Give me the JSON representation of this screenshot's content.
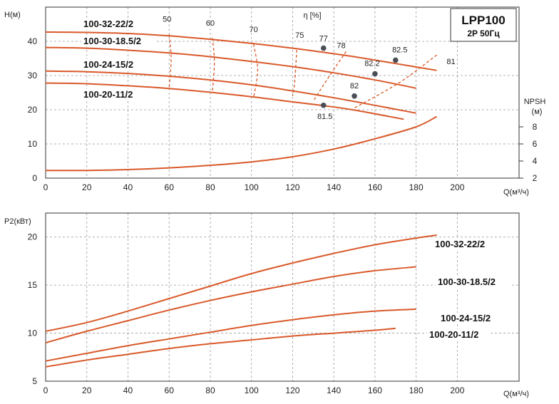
{
  "title": "LPP100",
  "subtitle": "2P  50Гц",
  "chart_data": [
    {
      "type": "line",
      "ylabel": "H(м)",
      "xlabel": "Q(м³/ч)",
      "y2label": "NPSH",
      "y2unit": "(м)",
      "xlim": [
        0,
        230
      ],
      "ylim": [
        0,
        50
      ],
      "y2lim": [
        2,
        10
      ],
      "xticks": [
        0,
        20,
        40,
        60,
        80,
        100,
        120,
        140,
        160,
        180,
        200
      ],
      "yticks": [
        0,
        10,
        20,
        30,
        40
      ],
      "y2ticks": [
        2,
        4,
        6,
        8
      ],
      "grid": true,
      "efficiency_label": "η [%]",
      "series": [
        {
          "name": "100-32-22/2",
          "x": [
            0,
            20,
            40,
            60,
            80,
            100,
            120,
            135,
            150,
            170,
            190
          ],
          "y": [
            42.7,
            42.6,
            42.3,
            41.6,
            40.6,
            39.4,
            38.0,
            36.8,
            35.5,
            33.5,
            31.5
          ]
        },
        {
          "name": "100-30-18.5/2",
          "x": [
            0,
            20,
            40,
            60,
            80,
            100,
            120,
            140,
            160,
            180
          ],
          "y": [
            38.2,
            38.0,
            37.4,
            36.6,
            35.5,
            34.1,
            32.6,
            30.8,
            28.7,
            26.3
          ]
        },
        {
          "name": "100-24-15/2",
          "x": [
            0,
            20,
            40,
            60,
            80,
            100,
            120,
            140,
            160,
            180
          ],
          "y": [
            31.3,
            31.1,
            30.6,
            29.8,
            28.7,
            27.3,
            25.5,
            23.5,
            21.3,
            19.0
          ]
        },
        {
          "name": "100-20-11/2",
          "x": [
            0,
            20,
            40,
            60,
            80,
            100,
            120,
            135,
            150,
            174
          ],
          "y": [
            27.8,
            27.6,
            27.0,
            26.2,
            25.1,
            23.8,
            22.3,
            21.2,
            19.9,
            17.2
          ]
        }
      ],
      "efficiency_points": [
        {
          "label": "77",
          "x": 135,
          "y": 38.0
        },
        {
          "label": "82.5",
          "x": 170,
          "y": 34.5
        },
        {
          "label": "82.2",
          "x": 160,
          "y": 30.5
        },
        {
          "label": "82",
          "x": 150,
          "y": 24.0
        },
        {
          "label": "81.5",
          "x": 135,
          "y": 21.3
        }
      ],
      "efficiency_curves": [
        {
          "label": "50",
          "x": [
            60,
            61,
            60
          ],
          "y": [
            42.0,
            35.0,
            26.2
          ]
        },
        {
          "label": "60",
          "x": [
            81,
            82,
            81
          ],
          "y": [
            41.0,
            34.0,
            25.0
          ]
        },
        {
          "label": "70",
          "x": [
            101,
            103,
            101
          ],
          "y": [
            39.2,
            31.5,
            23.5
          ]
        },
        {
          "label": "75",
          "x": [
            122,
            121,
            120
          ],
          "y": [
            37.5,
            28.0,
            24.0
          ]
        },
        {
          "label": "78",
          "x": [
            146,
            138,
            130
          ],
          "y": [
            37.0,
            30.0,
            22.5
          ]
        },
        {
          "label": "81",
          "x": [
            190,
            172,
            150
          ],
          "y": [
            36.0,
            28.0,
            20.5
          ]
        }
      ],
      "npsh_curve": {
        "x": [
          0,
          20,
          40,
          60,
          80,
          100,
          120,
          140,
          160,
          180,
          190
        ],
        "y": [
          2.9,
          2.9,
          3.0,
          3.2,
          3.5,
          3.9,
          4.5,
          5.4,
          6.6,
          8.0,
          9.2
        ]
      }
    },
    {
      "type": "line",
      "ylabel": "P2(кВт)",
      "xlabel": "Q(м³/ч)",
      "xlim": [
        0,
        230
      ],
      "ylim": [
        5,
        22.5
      ],
      "xticks": [
        0,
        20,
        40,
        60,
        80,
        100,
        120,
        140,
        160,
        180,
        200
      ],
      "yticks": [
        5,
        10,
        15,
        20
      ],
      "grid": true,
      "series": [
        {
          "name": "100-32-22/2",
          "x": [
            0,
            20,
            40,
            60,
            80,
            100,
            120,
            140,
            160,
            180,
            190
          ],
          "y": [
            10.2,
            11.1,
            12.3,
            13.6,
            14.9,
            16.2,
            17.3,
            18.3,
            19.2,
            19.9,
            20.2
          ]
        },
        {
          "name": "100-30-18.5/2",
          "x": [
            0,
            20,
            40,
            60,
            80,
            100,
            120,
            140,
            160,
            180
          ],
          "y": [
            9.0,
            10.2,
            11.3,
            12.4,
            13.4,
            14.3,
            15.1,
            15.9,
            16.5,
            16.9
          ]
        },
        {
          "name": "100-24-15/2",
          "x": [
            0,
            20,
            40,
            60,
            80,
            100,
            120,
            140,
            160,
            180
          ],
          "y": [
            7.1,
            7.9,
            8.7,
            9.4,
            10.1,
            10.8,
            11.4,
            11.9,
            12.3,
            12.5
          ]
        },
        {
          "name": "100-20-11/2",
          "x": [
            0,
            20,
            40,
            60,
            80,
            100,
            120,
            140,
            160,
            170
          ],
          "y": [
            6.5,
            7.2,
            7.8,
            8.4,
            8.9,
            9.3,
            9.7,
            10.0,
            10.3,
            10.5
          ]
        }
      ]
    }
  ]
}
